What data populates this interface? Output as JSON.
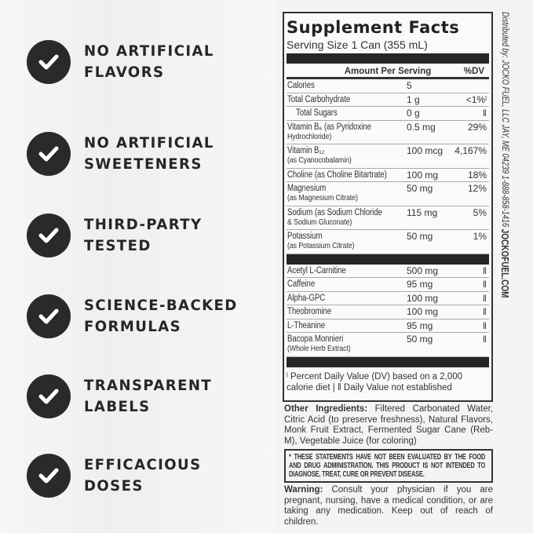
{
  "claims": [
    {
      "line1": "NO ARTIFICIAL",
      "line2": "FLAVORS"
    },
    {
      "line1": "NO ARTIFICIAL",
      "line2": "SWEETENERS"
    },
    {
      "line1": "THIRD-PARTY",
      "line2": "TESTED"
    },
    {
      "line1": "SCIENCE-BACKED",
      "line2": "FORMULAS"
    },
    {
      "line1": "TRANSPARENT",
      "line2": "LABELS"
    },
    {
      "line1": "EFFICACIOUS",
      "line2": "DOSES"
    }
  ],
  "facts": {
    "title": "Supplement Facts",
    "serving": "Serving Size 1 Can (355 mL)",
    "amount_header": "Amount Per Serving",
    "dv_header": "%DV",
    "rows": [
      {
        "name": "Calories",
        "sub": "",
        "amount": "5",
        "dv": ""
      },
      {
        "name": "Total Carbohydrate",
        "sub": "",
        "amount": "1 g",
        "dv": "<1%ˡ"
      },
      {
        "name": "Total Sugars",
        "sub": "",
        "amount": "0 g",
        "dv": "ǁ"
      },
      {
        "name": "Vitamin B₆ (as Pyridoxine",
        "sub": "Hydrochloride)",
        "amount": "0.5 mg",
        "dv": "29%"
      },
      {
        "name": "Vitamin B₁₂",
        "sub": "(as Cyanocobalamin)",
        "amount": "100 mcg",
        "dv": "4,167%"
      },
      {
        "name": "Choline (as Choline Bitartrate)",
        "sub": "",
        "amount": "100 mg",
        "dv": "18%"
      },
      {
        "name": "Magnesium",
        "sub": "(as Magnesium Citrate)",
        "amount": "50 mg",
        "dv": "12%"
      },
      {
        "name": "Sodium (as Sodium Chloride",
        "sub": "& Sodium Gluconate)",
        "amount": "115 mg",
        "dv": "5%"
      },
      {
        "name": "Potassium",
        "sub": "(as Potassium Citrate)",
        "amount": "50 mg",
        "dv": "1%"
      }
    ],
    "rows2": [
      {
        "name": "Acetyl L-Carnitine",
        "sub": "",
        "amount": "500 mg",
        "dv": "ǁ"
      },
      {
        "name": "Caffeine",
        "sub": "",
        "amount": "95 mg",
        "dv": "ǁ"
      },
      {
        "name": "Alpha-GPC",
        "sub": "",
        "amount": "100 mg",
        "dv": "ǁ"
      },
      {
        "name": "Theobromine",
        "sub": "",
        "amount": "100 mg",
        "dv": "ǁ"
      },
      {
        "name": "L-Theanine",
        "sub": "",
        "amount": "95 mg",
        "dv": "ǁ"
      },
      {
        "name": "Bacopa Monnieri",
        "sub": "(Whole Herb Extract)",
        "amount": "50 mg",
        "dv": "ǁ"
      }
    ],
    "footnote": "ˡ Percent Daily Value (DV) based on a 2,000 calorie diet  |  ǁ Daily Value not established"
  },
  "distributor": "Distributed by: JOCKO FUEL, LLC JAY, ME 04239 1-888-858-1416",
  "website": "JOCKOFUEL.COM",
  "other_ingredients_label": "Other Ingredients:",
  "other_ingredients": "Filtered Carbonated Water, Citric Acid (to preserve freshness), Natural Flavors, Monk Fruit Extract, Fermented Sugar Cane (Reb-M), Vegetable Juice (for coloring)",
  "disclaimer": "* These statements have not been evaluated by the Food and Drug Administration. This product is not intended to diagnose, treat, cure or prevent disease.",
  "warning_label": "Warning:",
  "warning": "Consult your physician if you are pregnant, nursing, have a medical condition, or are taking any medication. Keep out of reach of children.",
  "colors": {
    "check_bg": "#2a2a2a",
    "bar": "#262626"
  }
}
